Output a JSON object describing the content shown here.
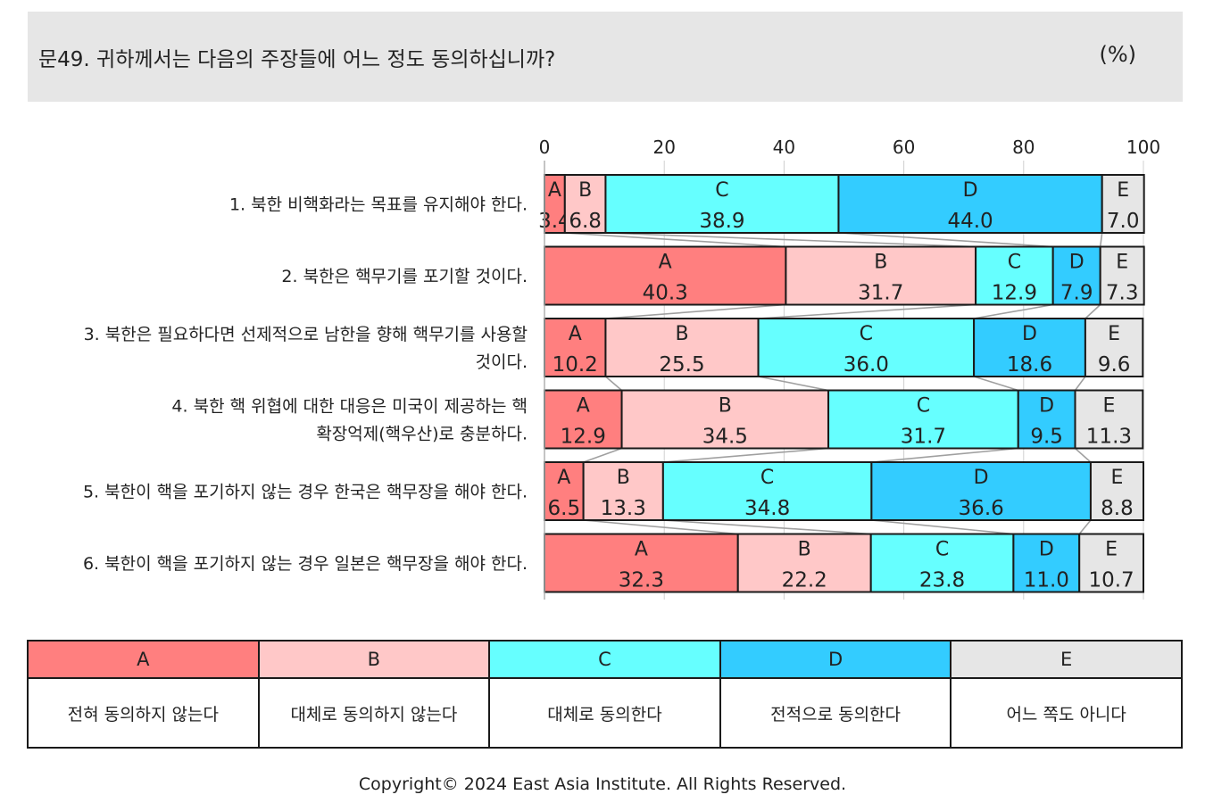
{
  "header": {
    "title": "문49. 귀하께서는 다음의 주장들에 어느 정도 동의하십니까?",
    "unit": "(%)"
  },
  "chart_data": {
    "type": "bar",
    "orientation": "horizontal",
    "stacked": true,
    "xlim": [
      0,
      100
    ],
    "x_ticks": [
      0,
      20,
      40,
      60,
      80,
      100
    ],
    "categories": [
      [
        "1. 북한 비핵화라는 목표를 유지해야 한다."
      ],
      [
        "2. 북한은 핵무기를 포기할 것이다."
      ],
      [
        "3. 북한은 필요하다면 선제적으로 남한을 향해 핵무기를 사용할",
        "것이다."
      ],
      [
        "4. 북한 핵 위협에 대한 대응은 미국이 제공하는 핵",
        "확장억제(핵우산)로 충분하다."
      ],
      [
        "5. 북한이 핵을 포기하지 않는 경우 한국은 핵무장을 해야 한다."
      ],
      [
        "6. 북한이 핵을 포기하지 않는 경우 일본은 핵무장을 해야 한다."
      ]
    ],
    "series": [
      {
        "name": "A",
        "color": "#ff7f7f",
        "values": [
          3.4,
          40.3,
          10.2,
          12.9,
          6.5,
          32.3
        ]
      },
      {
        "name": "B",
        "color": "#ffc8c8",
        "values": [
          6.8,
          31.7,
          25.5,
          34.5,
          13.3,
          22.2
        ]
      },
      {
        "name": "C",
        "color": "#66ffff",
        "values": [
          38.9,
          12.9,
          36.0,
          31.7,
          34.8,
          23.8
        ]
      },
      {
        "name": "D",
        "color": "#33ccff",
        "values": [
          44.0,
          7.9,
          18.6,
          9.5,
          36.6,
          11.0
        ]
      },
      {
        "name": "E",
        "color": "#e6e6e6",
        "values": [
          7.0,
          7.3,
          9.6,
          11.3,
          8.8,
          10.7
        ]
      }
    ],
    "grid": true,
    "series_lines": true,
    "legend_position": "bottom"
  },
  "legend": [
    {
      "code": "A",
      "label": "전혀 동의하지 않는다",
      "color": "#ff7f7f"
    },
    {
      "code": "B",
      "label": "대체로 동의하지 않는다",
      "color": "#ffc8c8"
    },
    {
      "code": "C",
      "label": "대체로 동의한다",
      "color": "#66ffff"
    },
    {
      "code": "D",
      "label": "전적으로 동의한다",
      "color": "#33ccff"
    },
    {
      "code": "E",
      "label": "어느 쪽도 아니다",
      "color": "#e6e6e6"
    }
  ],
  "footer": {
    "copyright": "Copyright© 2024 East Asia Institute. All Rights Reserved."
  }
}
